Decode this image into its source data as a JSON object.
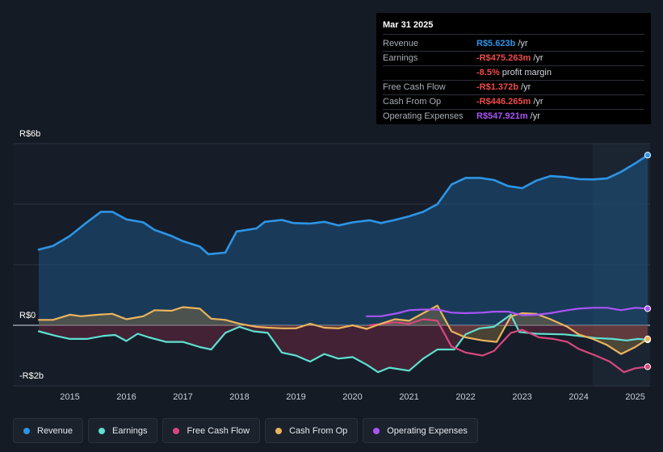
{
  "tooltip": {
    "date": "Mar 31 2025",
    "rows": [
      {
        "label": "Revenue",
        "value": "R$5.623b",
        "unit": " /yr",
        "color": "#2d95e6"
      },
      {
        "label": "Earnings",
        "value": "-R$475.263m",
        "unit": " /yr",
        "color": "#ef4a4a"
      },
      {
        "label": "",
        "value": "-8.5%",
        "unit": " profit margin",
        "color": "#ef4a4a"
      },
      {
        "label": "Free Cash Flow",
        "value": "-R$1.372b",
        "unit": " /yr",
        "color": "#ef4a4a"
      },
      {
        "label": "Cash From Op",
        "value": "-R$446.265m",
        "unit": " /yr",
        "color": "#ef4a4a"
      },
      {
        "label": "Operating Expenses",
        "value": "R$547.921m",
        "unit": " /yr",
        "color": "#a855f7"
      }
    ]
  },
  "axis": {
    "top_label": "R$6b",
    "zero_label": "R$0",
    "bottom_label": "-R$2b"
  },
  "legend": [
    {
      "label": "Revenue",
      "color": "#2d95e6"
    },
    {
      "label": "Earnings",
      "color": "#5ee0cf"
    },
    {
      "label": "Free Cash Flow",
      "color": "#d9477f"
    },
    {
      "label": "Cash From Op",
      "color": "#eab45c"
    },
    {
      "label": "Operating Expenses",
      "color": "#a855f7"
    }
  ],
  "chart_data": {
    "type": "line",
    "title": "",
    "xlabel": "",
    "ylabel": "",
    "ylim": [
      -2,
      6
    ],
    "xlim": [
      2014.45,
      2025.25
    ],
    "units": "R$ billions",
    "x_ticks": [
      "2015",
      "2016",
      "2017",
      "2018",
      "2019",
      "2020",
      "2021",
      "2022",
      "2023",
      "2024",
      "2025"
    ],
    "y_tick_labels": [
      "R$6b",
      "R$0",
      "-R$2b"
    ],
    "highlight_from": 2024.25,
    "series": [
      {
        "name": "Revenue",
        "color": "#2d95e6",
        "fill": true,
        "points": [
          [
            2014.45,
            2.5
          ],
          [
            2014.7,
            2.62
          ],
          [
            2015.0,
            2.95
          ],
          [
            2015.3,
            3.4
          ],
          [
            2015.55,
            3.75
          ],
          [
            2015.75,
            3.75
          ],
          [
            2016.0,
            3.5
          ],
          [
            2016.3,
            3.4
          ],
          [
            2016.5,
            3.15
          ],
          [
            2016.8,
            2.95
          ],
          [
            2017.0,
            2.78
          ],
          [
            2017.3,
            2.6
          ],
          [
            2017.45,
            2.35
          ],
          [
            2017.75,
            2.4
          ],
          [
            2017.95,
            3.1
          ],
          [
            2018.3,
            3.2
          ],
          [
            2018.45,
            3.42
          ],
          [
            2018.75,
            3.48
          ],
          [
            2018.95,
            3.38
          ],
          [
            2019.25,
            3.36
          ],
          [
            2019.5,
            3.42
          ],
          [
            2019.75,
            3.3
          ],
          [
            2020.0,
            3.4
          ],
          [
            2020.3,
            3.47
          ],
          [
            2020.5,
            3.38
          ],
          [
            2020.75,
            3.48
          ],
          [
            2021.0,
            3.6
          ],
          [
            2021.25,
            3.75
          ],
          [
            2021.5,
            4.0
          ],
          [
            2021.75,
            4.65
          ],
          [
            2022.0,
            4.87
          ],
          [
            2022.25,
            4.87
          ],
          [
            2022.5,
            4.8
          ],
          [
            2022.75,
            4.6
          ],
          [
            2023.0,
            4.53
          ],
          [
            2023.25,
            4.78
          ],
          [
            2023.5,
            4.93
          ],
          [
            2023.75,
            4.9
          ],
          [
            2024.0,
            4.83
          ],
          [
            2024.25,
            4.82
          ],
          [
            2024.5,
            4.85
          ],
          [
            2024.75,
            5.07
          ],
          [
            2025.0,
            5.35
          ],
          [
            2025.22,
            5.62
          ]
        ]
      },
      {
        "name": "Earnings",
        "color": "#5ee0cf",
        "fill": true,
        "points": [
          [
            2014.45,
            -0.2
          ],
          [
            2014.75,
            -0.35
          ],
          [
            2015.0,
            -0.45
          ],
          [
            2015.3,
            -0.45
          ],
          [
            2015.6,
            -0.35
          ],
          [
            2015.8,
            -0.32
          ],
          [
            2016.0,
            -0.52
          ],
          [
            2016.2,
            -0.28
          ],
          [
            2016.4,
            -0.4
          ],
          [
            2016.7,
            -0.55
          ],
          [
            2017.0,
            -0.55
          ],
          [
            2017.3,
            -0.72
          ],
          [
            2017.5,
            -0.8
          ],
          [
            2017.75,
            -0.25
          ],
          [
            2018.0,
            -0.05
          ],
          [
            2018.25,
            -0.2
          ],
          [
            2018.5,
            -0.25
          ],
          [
            2018.75,
            -0.9
          ],
          [
            2019.0,
            -1.0
          ],
          [
            2019.25,
            -1.2
          ],
          [
            2019.5,
            -0.95
          ],
          [
            2019.75,
            -1.1
          ],
          [
            2020.0,
            -1.05
          ],
          [
            2020.25,
            -1.3
          ],
          [
            2020.45,
            -1.55
          ],
          [
            2020.65,
            -1.4
          ],
          [
            2021.0,
            -1.5
          ],
          [
            2021.25,
            -1.1
          ],
          [
            2021.5,
            -0.8
          ],
          [
            2021.8,
            -0.8
          ],
          [
            2022.0,
            -0.3
          ],
          [
            2022.25,
            -0.1
          ],
          [
            2022.5,
            -0.05
          ],
          [
            2022.8,
            0.35
          ],
          [
            2022.95,
            -0.22
          ],
          [
            2023.25,
            -0.28
          ],
          [
            2023.75,
            -0.3
          ],
          [
            2024.0,
            -0.35
          ],
          [
            2024.3,
            -0.42
          ],
          [
            2024.6,
            -0.45
          ],
          [
            2024.85,
            -0.5
          ],
          [
            2025.05,
            -0.45
          ],
          [
            2025.22,
            -0.48
          ]
        ]
      },
      {
        "name": "Free Cash Flow",
        "color": "#d9477f",
        "fill": false,
        "points": [
          [
            2020.3,
            0.0
          ],
          [
            2020.75,
            0.1
          ],
          [
            2021.0,
            0.05
          ],
          [
            2021.25,
            0.2
          ],
          [
            2021.5,
            0.15
          ],
          [
            2021.75,
            -0.7
          ],
          [
            2022.0,
            -0.9
          ],
          [
            2022.3,
            -1.0
          ],
          [
            2022.5,
            -0.85
          ],
          [
            2022.8,
            -0.25
          ],
          [
            2023.0,
            -0.15
          ],
          [
            2023.3,
            -0.4
          ],
          [
            2023.55,
            -0.45
          ],
          [
            2023.8,
            -0.55
          ],
          [
            2024.0,
            -0.78
          ],
          [
            2024.3,
            -1.0
          ],
          [
            2024.55,
            -1.2
          ],
          [
            2024.8,
            -1.55
          ],
          [
            2025.0,
            -1.42
          ],
          [
            2025.22,
            -1.37
          ]
        ]
      },
      {
        "name": "Cash From Op",
        "color": "#eab45c",
        "fill": true,
        "points": [
          [
            2014.45,
            0.18
          ],
          [
            2014.7,
            0.18
          ],
          [
            2015.0,
            0.35
          ],
          [
            2015.2,
            0.3
          ],
          [
            2015.5,
            0.35
          ],
          [
            2015.75,
            0.38
          ],
          [
            2016.0,
            0.2
          ],
          [
            2016.3,
            0.3
          ],
          [
            2016.5,
            0.5
          ],
          [
            2016.8,
            0.48
          ],
          [
            2017.0,
            0.6
          ],
          [
            2017.3,
            0.55
          ],
          [
            2017.5,
            0.22
          ],
          [
            2017.75,
            0.18
          ],
          [
            2018.0,
            0.05
          ],
          [
            2018.3,
            -0.05
          ],
          [
            2018.5,
            -0.08
          ],
          [
            2018.75,
            -0.1
          ],
          [
            2019.0,
            -0.1
          ],
          [
            2019.25,
            0.05
          ],
          [
            2019.5,
            -0.08
          ],
          [
            2019.75,
            -0.1
          ],
          [
            2020.0,
            0.0
          ],
          [
            2020.25,
            -0.12
          ],
          [
            2020.5,
            0.05
          ],
          [
            2020.75,
            0.2
          ],
          [
            2021.0,
            0.15
          ],
          [
            2021.25,
            0.4
          ],
          [
            2021.5,
            0.65
          ],
          [
            2021.75,
            -0.2
          ],
          [
            2022.0,
            -0.4
          ],
          [
            2022.3,
            -0.5
          ],
          [
            2022.55,
            -0.55
          ],
          [
            2022.8,
            0.3
          ],
          [
            2023.0,
            0.4
          ],
          [
            2023.25,
            0.38
          ],
          [
            2023.5,
            0.2
          ],
          [
            2023.8,
            -0.05
          ],
          [
            2024.0,
            -0.3
          ],
          [
            2024.25,
            -0.45
          ],
          [
            2024.5,
            -0.65
          ],
          [
            2024.75,
            -0.95
          ],
          [
            2025.0,
            -0.72
          ],
          [
            2025.22,
            -0.45
          ]
        ]
      },
      {
        "name": "Operating Expenses",
        "color": "#a855f7",
        "fill": false,
        "points": [
          [
            2020.25,
            0.3
          ],
          [
            2020.5,
            0.3
          ],
          [
            2020.8,
            0.4
          ],
          [
            2021.0,
            0.5
          ],
          [
            2021.25,
            0.52
          ],
          [
            2021.5,
            0.52
          ],
          [
            2021.75,
            0.42
          ],
          [
            2022.0,
            0.4
          ],
          [
            2022.3,
            0.42
          ],
          [
            2022.5,
            0.45
          ],
          [
            2022.75,
            0.45
          ],
          [
            2023.0,
            0.33
          ],
          [
            2023.25,
            0.35
          ],
          [
            2023.5,
            0.4
          ],
          [
            2023.8,
            0.5
          ],
          [
            2024.0,
            0.55
          ],
          [
            2024.25,
            0.58
          ],
          [
            2024.5,
            0.58
          ],
          [
            2024.75,
            0.5
          ],
          [
            2025.0,
            0.58
          ],
          [
            2025.22,
            0.55
          ]
        ]
      }
    ]
  }
}
